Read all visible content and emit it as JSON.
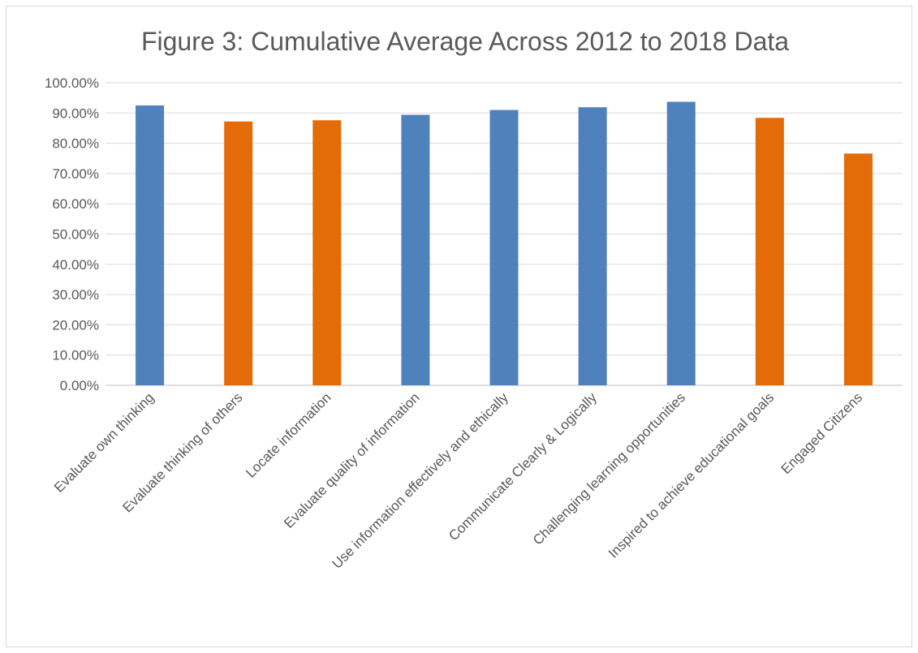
{
  "chart_data": {
    "type": "bar",
    "title": "Figure 3: Cumulative Average Across 2012 to 2018 Data",
    "xlabel": "",
    "ylabel": "",
    "ylim": [
      0,
      1.0
    ],
    "y_tick_labels": [
      "0.00%",
      "10.00%",
      "20.00%",
      "30.00%",
      "40.00%",
      "50.00%",
      "60.00%",
      "70.00%",
      "80.00%",
      "90.00%",
      "100.00%"
    ],
    "y_tick_values": [
      0,
      0.1,
      0.2,
      0.3,
      0.4,
      0.5,
      0.6,
      0.7,
      0.8,
      0.9,
      1.0
    ],
    "grid": true,
    "legend": "none",
    "categories": [
      "Evaluate own thinking",
      "Evaluate thinking of others",
      "Locate information",
      "Evaluate quality of information",
      "Use information effectively and ethically",
      "Communicate Clearly & Logically",
      "Challenging learning opportunities",
      "Inspired to achieve educational goals",
      "Engaged Citizens"
    ],
    "values": [
      0.925,
      0.872,
      0.876,
      0.894,
      0.91,
      0.919,
      0.937,
      0.884,
      0.766
    ],
    "bar_colors": [
      "#4f81bd",
      "#e36c09",
      "#e36c09",
      "#4f81bd",
      "#4f81bd",
      "#4f81bd",
      "#4f81bd",
      "#e36c09",
      "#e36c09"
    ],
    "colors": {
      "gridline": "#d9d9d9",
      "axis": "#bfbfbf",
      "text": "#595959"
    }
  }
}
